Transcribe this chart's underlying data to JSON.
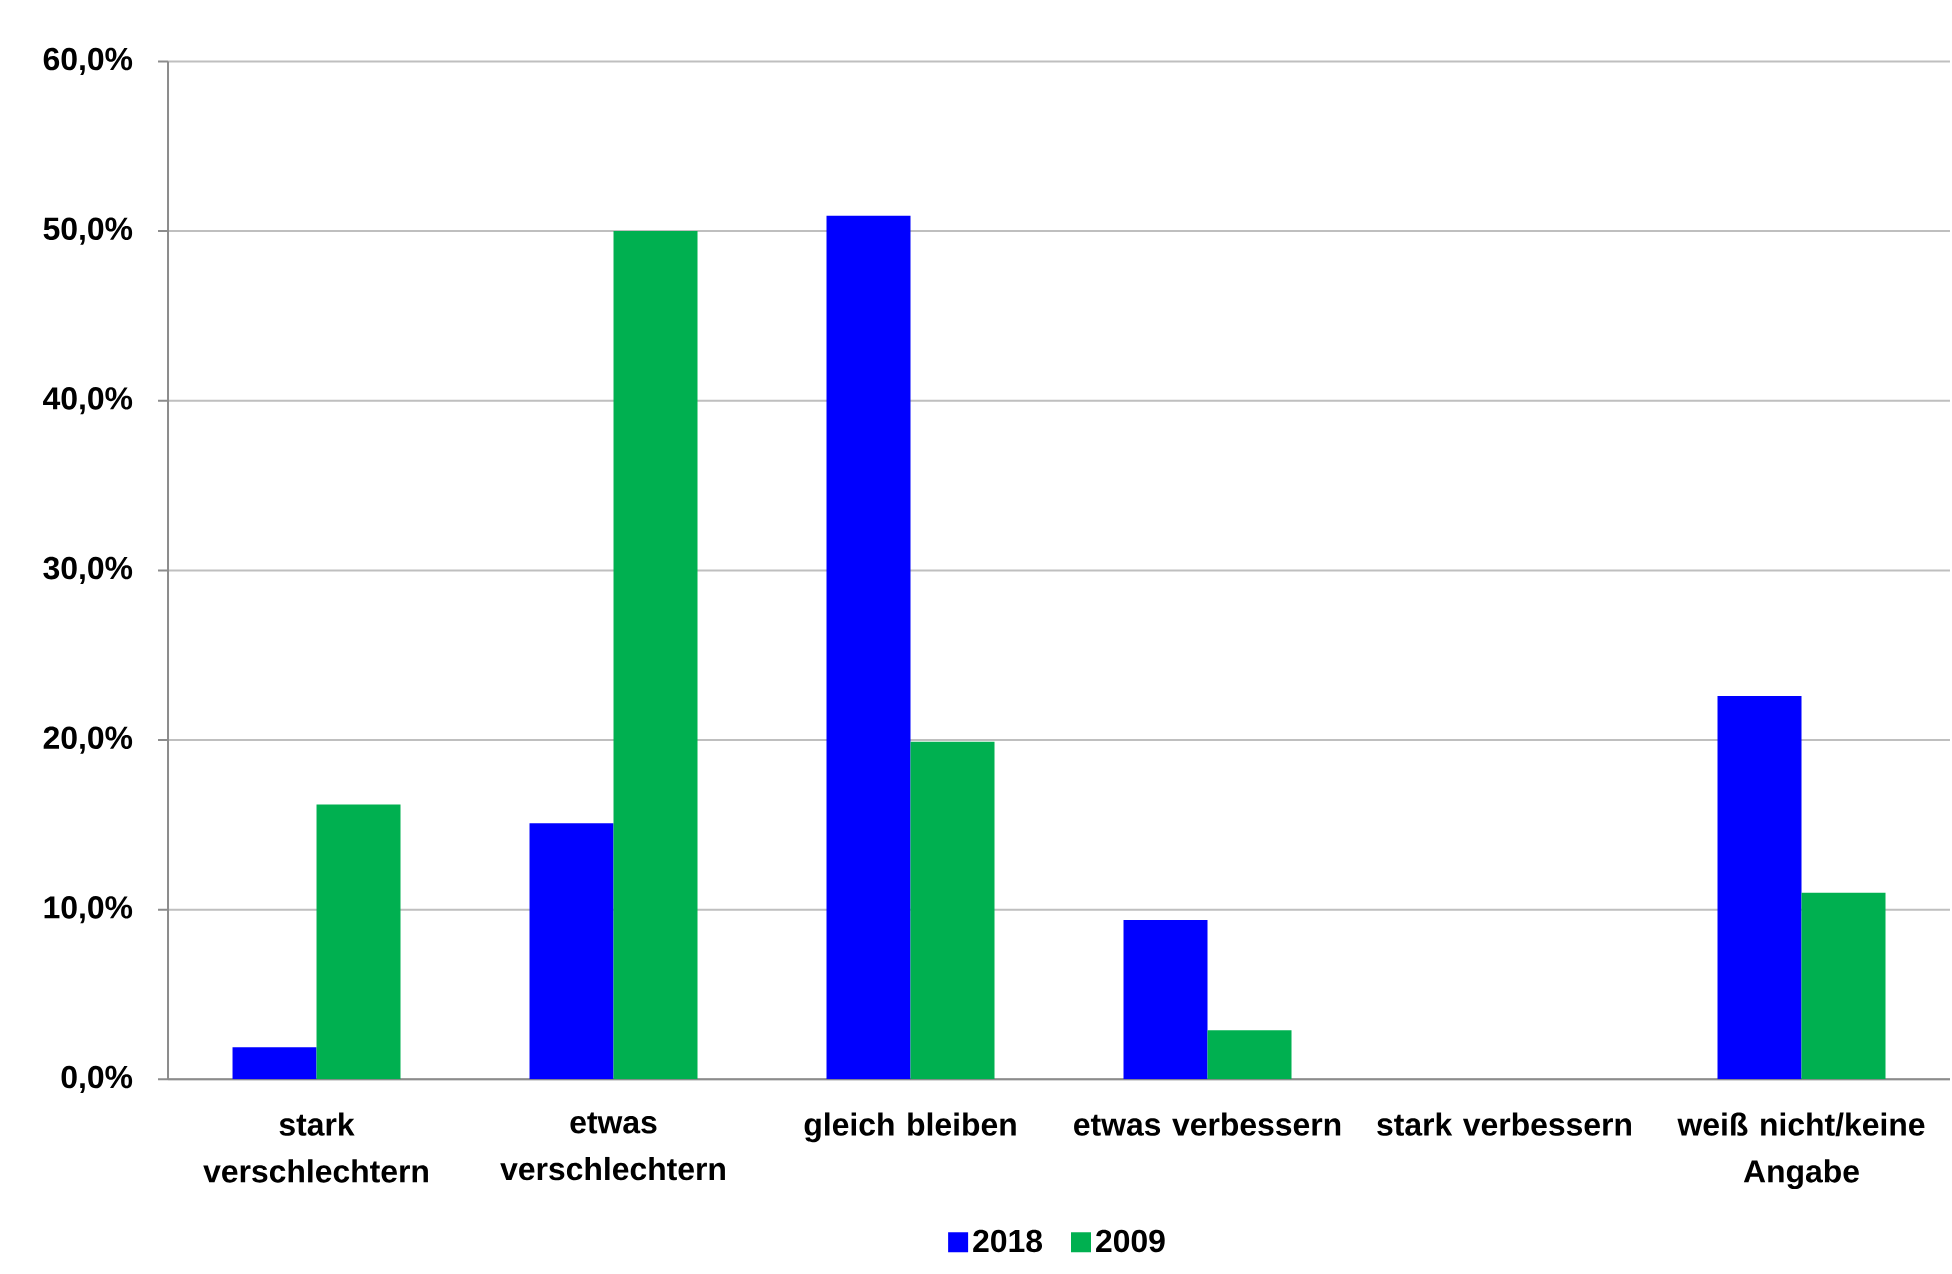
{
  "chart_data": {
    "type": "bar",
    "categories": [
      "stark verschlechtern",
      "etwas verschlechtern",
      "gleich bleiben",
      "etwas verbessern",
      "stark verbessern",
      "weiß nicht/keine Angabe"
    ],
    "series": [
      {
        "name": "2018",
        "color": "#0000ff",
        "values": [
          1.9,
          15.1,
          50.9,
          9.4,
          null,
          22.6
        ]
      },
      {
        "name": "2009",
        "color": "#00b050",
        "values": [
          16.2,
          50.0,
          19.9,
          2.9,
          null,
          11.0
        ]
      }
    ],
    "ylim": [
      0,
      60
    ],
    "yticks": [
      {
        "value": 0,
        "label": "0,0%"
      },
      {
        "value": 10,
        "label": "10,0%"
      },
      {
        "value": 20,
        "label": "20,0%"
      },
      {
        "value": 30,
        "label": "30,0%"
      },
      {
        "value": 40,
        "label": "40,0%"
      },
      {
        "value": 50,
        "label": "50,0%"
      },
      {
        "value": 60,
        "label": "60,0%"
      }
    ],
    "grid": "y",
    "legend": "bottom"
  }
}
